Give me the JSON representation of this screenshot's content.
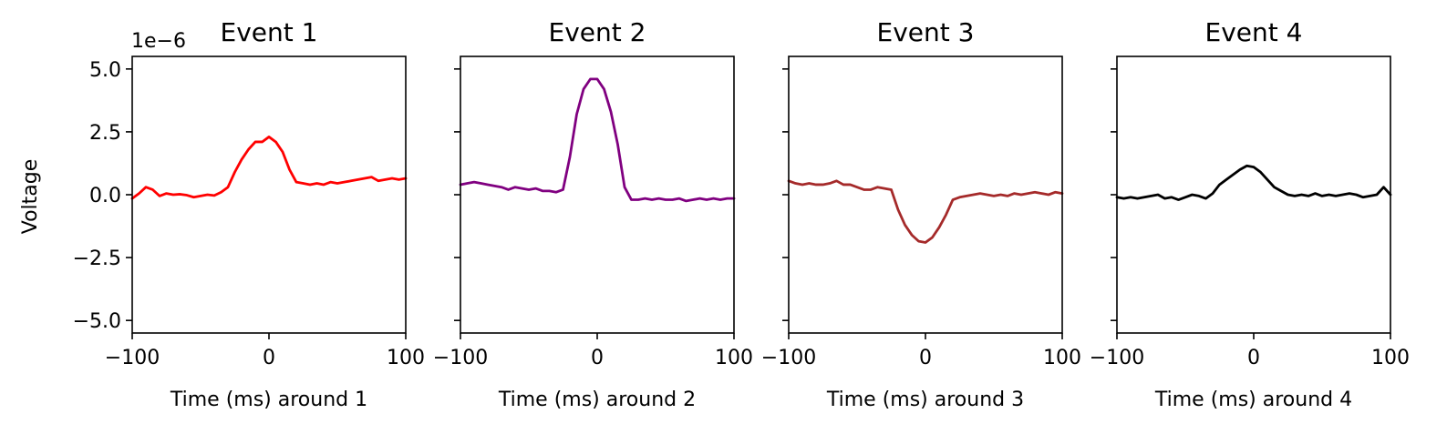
{
  "chart_data": {
    "type": "line",
    "ylabel": "Voltage",
    "y_offset_text": "1e−6",
    "ylim": [
      -5.5,
      5.5
    ],
    "xlim": [
      -100,
      100
    ],
    "x_ticks": [
      -100,
      0,
      100
    ],
    "x_tick_labels": [
      "−100",
      "0",
      "100"
    ],
    "y_ticks": [
      -5.0,
      -2.5,
      0.0,
      2.5,
      5.0
    ],
    "y_tick_labels": [
      "−5.0",
      "−2.5",
      "0.0",
      "2.5",
      "5.0"
    ],
    "grid": false,
    "panels": [
      {
        "title": "Event 1",
        "xlabel": "Time (ms) around 1",
        "color": "#ff0000",
        "x": [
          -100,
          -95,
          -90,
          -85,
          -80,
          -75,
          -70,
          -65,
          -60,
          -55,
          -50,
          -45,
          -40,
          -35,
          -30,
          -25,
          -20,
          -15,
          -10,
          -5,
          0,
          5,
          10,
          15,
          20,
          25,
          30,
          35,
          40,
          45,
          50,
          55,
          60,
          65,
          70,
          75,
          80,
          85,
          90,
          95,
          100
        ],
        "y": [
          -0.15,
          0.05,
          0.3,
          0.2,
          -0.05,
          0.05,
          0.0,
          0.02,
          -0.02,
          -0.1,
          -0.05,
          0.0,
          -0.03,
          0.1,
          0.3,
          0.9,
          1.4,
          1.8,
          2.1,
          2.1,
          2.3,
          2.1,
          1.7,
          1.0,
          0.5,
          0.45,
          0.4,
          0.45,
          0.4,
          0.5,
          0.45,
          0.5,
          0.55,
          0.6,
          0.65,
          0.7,
          0.55,
          0.6,
          0.65,
          0.6,
          0.65
        ]
      },
      {
        "title": "Event 2",
        "xlabel": "Time (ms) around 2",
        "color": "#800080",
        "x": [
          -100,
          -95,
          -90,
          -85,
          -80,
          -75,
          -70,
          -65,
          -60,
          -55,
          -50,
          -45,
          -40,
          -35,
          -30,
          -25,
          -20,
          -15,
          -10,
          -5,
          0,
          5,
          10,
          15,
          20,
          25,
          30,
          35,
          40,
          45,
          50,
          55,
          60,
          65,
          70,
          75,
          80,
          85,
          90,
          95,
          100
        ],
        "y": [
          0.4,
          0.45,
          0.5,
          0.45,
          0.4,
          0.35,
          0.3,
          0.2,
          0.3,
          0.25,
          0.2,
          0.25,
          0.15,
          0.15,
          0.1,
          0.2,
          1.5,
          3.2,
          4.2,
          4.6,
          4.6,
          4.2,
          3.3,
          2.0,
          0.3,
          -0.2,
          -0.2,
          -0.15,
          -0.2,
          -0.15,
          -0.2,
          -0.2,
          -0.15,
          -0.25,
          -0.2,
          -0.15,
          -0.2,
          -0.15,
          -0.2,
          -0.15,
          -0.15
        ]
      },
      {
        "title": "Event 3",
        "xlabel": "Time (ms) around 3",
        "color": "#a52a2a",
        "x": [
          -100,
          -95,
          -90,
          -85,
          -80,
          -75,
          -70,
          -65,
          -60,
          -55,
          -50,
          -45,
          -40,
          -35,
          -30,
          -25,
          -20,
          -15,
          -10,
          -5,
          0,
          5,
          10,
          15,
          20,
          25,
          30,
          35,
          40,
          45,
          50,
          55,
          60,
          65,
          70,
          75,
          80,
          85,
          90,
          95,
          100
        ],
        "y": [
          0.55,
          0.45,
          0.4,
          0.45,
          0.4,
          0.4,
          0.45,
          0.55,
          0.4,
          0.4,
          0.3,
          0.2,
          0.2,
          0.3,
          0.25,
          0.2,
          -0.6,
          -1.2,
          -1.6,
          -1.85,
          -1.9,
          -1.7,
          -1.3,
          -0.8,
          -0.2,
          -0.1,
          -0.05,
          0.0,
          0.05,
          0.0,
          -0.05,
          0.0,
          -0.05,
          0.05,
          0.0,
          0.05,
          0.1,
          0.05,
          0.0,
          0.1,
          0.05
        ]
      },
      {
        "title": "Event 4",
        "xlabel": "Time (ms) around 4",
        "color": "#000000",
        "x": [
          -100,
          -95,
          -90,
          -85,
          -80,
          -75,
          -70,
          -65,
          -60,
          -55,
          -50,
          -45,
          -40,
          -35,
          -30,
          -25,
          -20,
          -15,
          -10,
          -5,
          0,
          5,
          10,
          15,
          20,
          25,
          30,
          35,
          40,
          45,
          50,
          55,
          60,
          65,
          70,
          75,
          80,
          85,
          90,
          95,
          100
        ],
        "y": [
          -0.1,
          -0.15,
          -0.1,
          -0.15,
          -0.1,
          -0.05,
          0.0,
          -0.15,
          -0.1,
          -0.2,
          -0.1,
          0.0,
          -0.05,
          -0.15,
          0.05,
          0.4,
          0.6,
          0.8,
          1.0,
          1.15,
          1.1,
          0.9,
          0.6,
          0.3,
          0.15,
          0.0,
          -0.05,
          0.0,
          -0.05,
          0.05,
          -0.05,
          0.0,
          -0.05,
          0.0,
          0.05,
          0.0,
          -0.1,
          -0.05,
          0.0,
          0.3,
          0.0
        ]
      }
    ]
  }
}
